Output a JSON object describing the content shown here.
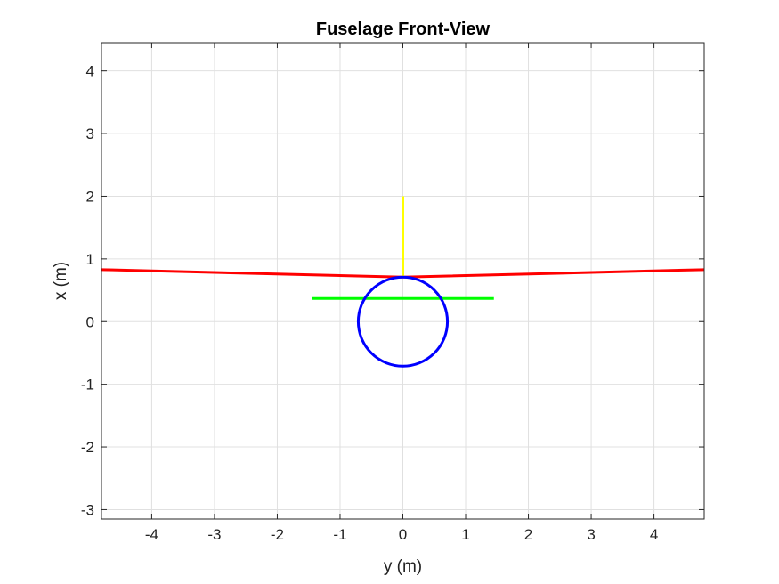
{
  "chart_data": {
    "type": "line",
    "title": "Fuselage Front-View",
    "xlabel": "y (m)",
    "ylabel": "x (m)",
    "xlim": [
      -4.8,
      4.8
    ],
    "ylim": [
      -3.15,
      4.45
    ],
    "xticks": [
      -4,
      -3,
      -2,
      -1,
      0,
      1,
      2,
      3,
      4
    ],
    "yticks": [
      -3,
      -2,
      -1,
      0,
      1,
      2,
      3,
      4
    ],
    "xtick_labels": [
      "-4",
      "-3",
      "-2",
      "-1",
      "0",
      "1",
      "2",
      "3",
      "4"
    ],
    "ytick_labels": [
      "-3",
      "-2",
      "-1",
      "0",
      "1",
      "2",
      "3",
      "4"
    ],
    "grid": true,
    "series": [
      {
        "color": "#ff0000",
        "kind": "polyline",
        "x": [
          -4.8,
          0,
          4.8
        ],
        "y": [
          0.83,
          0.71,
          0.83
        ]
      },
      {
        "color": "#00ff00",
        "kind": "polyline",
        "x": [
          -1.45,
          1.45
        ],
        "y": [
          0.37,
          0.37
        ]
      },
      {
        "color": "#ffff00",
        "kind": "polyline",
        "x": [
          0,
          0
        ],
        "y": [
          0.71,
          2.0
        ]
      },
      {
        "color": "#0000ff",
        "kind": "circle",
        "center": [
          0,
          0
        ],
        "radius": 0.71
      }
    ]
  }
}
